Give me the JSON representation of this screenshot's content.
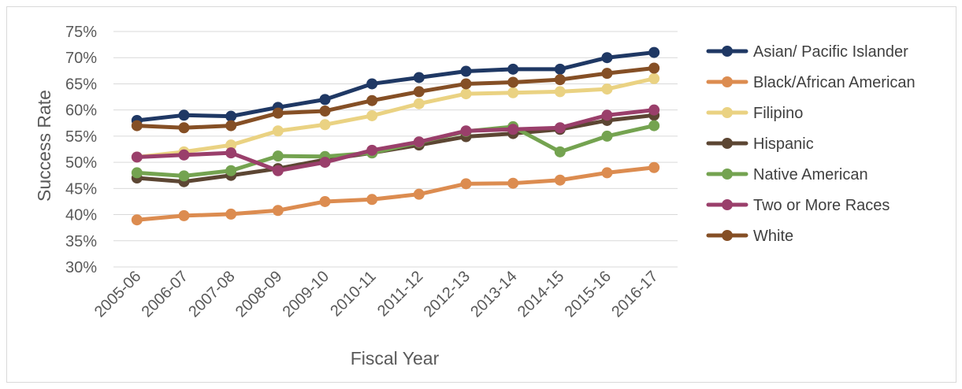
{
  "chart_data": {
    "type": "line",
    "title": "",
    "xlabel": "Fiscal Year",
    "ylabel": "Success Rate",
    "ylim": [
      30,
      75
    ],
    "y_ticks": [
      "30%",
      "35%",
      "40%",
      "45%",
      "50%",
      "55%",
      "60%",
      "65%",
      "70%",
      "75%"
    ],
    "grid": true,
    "legend_position": "right",
    "categories": [
      "2005-06",
      "2006-07",
      "2007-08",
      "2008-09",
      "2009-10",
      "2010-11",
      "2011-12",
      "2012-13",
      "2013-14",
      "2014-15",
      "2015-16",
      "2016-17"
    ],
    "series": [
      {
        "name": "Asian/ Pacific Islander",
        "color": "#1f3864",
        "values": [
          58,
          59,
          58.8,
          60.5,
          62,
          65,
          66.2,
          67.4,
          67.8,
          67.8,
          70,
          71
        ]
      },
      {
        "name": "Black/African American",
        "color": "#dc8c50",
        "values": [
          39,
          39.8,
          40.1,
          40.8,
          42.5,
          42.9,
          43.9,
          45.9,
          46,
          46.6,
          48,
          49
        ]
      },
      {
        "name": "Filipino",
        "color": "#ead282",
        "values": [
          51,
          52,
          53.3,
          56,
          57.2,
          58.9,
          61.2,
          63.1,
          63.3,
          63.5,
          64,
          66
        ]
      },
      {
        "name": "Hispanic",
        "color": "#5c4633",
        "values": [
          47,
          46.3,
          47.5,
          48.8,
          50.5,
          51.8,
          53.3,
          54.9,
          55.5,
          56.3,
          58,
          59
        ]
      },
      {
        "name": "Native American",
        "color": "#74a350",
        "values": [
          48,
          47.4,
          48.4,
          51.2,
          51.1,
          51.8,
          53.8,
          55.9,
          56.8,
          52,
          55,
          57
        ]
      },
      {
        "name": "Two or More Races",
        "color": "#9a3f6b",
        "values": [
          51,
          51.4,
          51.8,
          48.4,
          50,
          52.3,
          53.9,
          56,
          56.3,
          56.6,
          59,
          60
        ]
      },
      {
        "name": "White",
        "color": "#854f25",
        "values": [
          57,
          56.6,
          57,
          59.4,
          59.8,
          61.8,
          63.5,
          65,
          65.3,
          65.8,
          67,
          68
        ]
      }
    ]
  }
}
